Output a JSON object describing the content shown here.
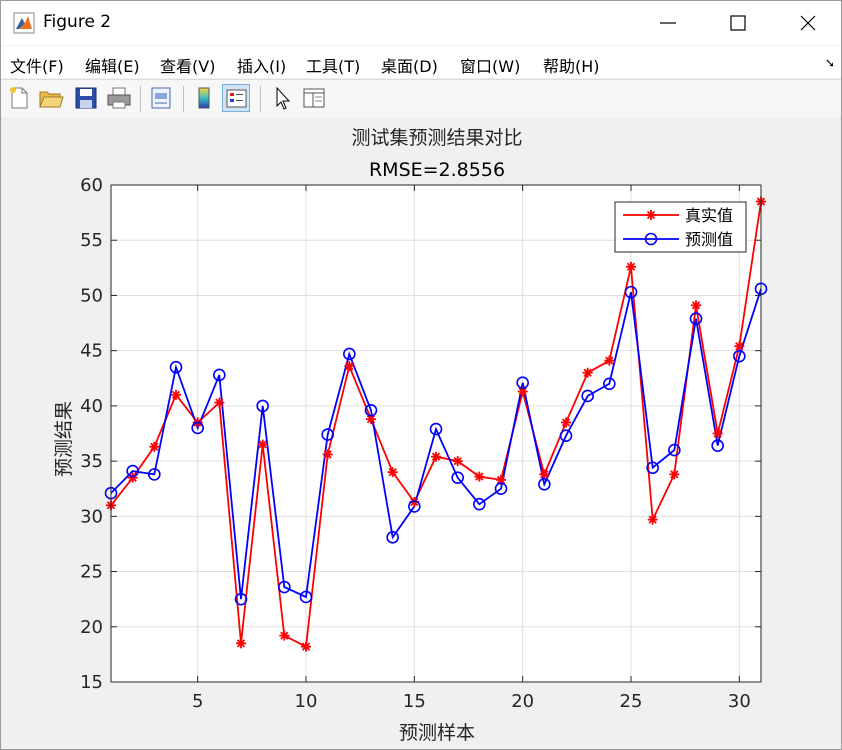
{
  "window": {
    "title": "Figure 2",
    "buttons": [
      "minimize",
      "maximize",
      "close"
    ]
  },
  "menu": {
    "items": [
      "文件(F)",
      "编辑(E)",
      "查看(V)",
      "插入(I)",
      "工具(T)",
      "桌面(D)",
      "窗口(W)",
      "帮助(H)"
    ]
  },
  "toolbar": {
    "icons": [
      "new-figure-icon",
      "open-icon",
      "save-icon",
      "print-icon",
      "print-preview-icon",
      "colorbar-icon",
      "legend-icon",
      "pointer-icon",
      "property-inspector-icon"
    ]
  },
  "chart_data": {
    "type": "line",
    "title": "测试集预测结果对比",
    "subtitle": "RMSE=2.8556",
    "xlabel": "预测样本",
    "ylabel": "预测结果",
    "xlim": [
      1,
      31
    ],
    "ylim": [
      15,
      60
    ],
    "xticks": [
      5,
      10,
      15,
      20,
      25,
      30
    ],
    "yticks": [
      15,
      20,
      25,
      30,
      35,
      40,
      45,
      50,
      55,
      60
    ],
    "grid": true,
    "legend_position": "top-right",
    "x": [
      1,
      2,
      3,
      4,
      5,
      6,
      7,
      8,
      9,
      10,
      11,
      12,
      13,
      14,
      15,
      16,
      17,
      18,
      19,
      20,
      21,
      22,
      23,
      24,
      25,
      26,
      27,
      28,
      29,
      30,
      31
    ],
    "series": [
      {
        "name": "真实值",
        "color": "#ff0000",
        "marker": "asterisk",
        "values": [
          31.0,
          33.5,
          36.3,
          41.0,
          38.5,
          40.3,
          18.5,
          36.5,
          19.2,
          18.2,
          35.6,
          43.6,
          38.8,
          34.0,
          31.3,
          35.4,
          35.0,
          33.6,
          33.3,
          41.3,
          33.8,
          38.5,
          43.0,
          44.1,
          52.6,
          29.7,
          33.8,
          49.1,
          37.5,
          45.4,
          58.5
        ]
      },
      {
        "name": "预测值",
        "color": "#0000ff",
        "marker": "circle",
        "values": [
          32.1,
          34.1,
          33.8,
          43.5,
          38.0,
          42.8,
          22.5,
          40.0,
          23.6,
          22.7,
          37.4,
          44.7,
          39.6,
          28.1,
          30.9,
          37.9,
          33.5,
          31.1,
          32.5,
          42.1,
          32.9,
          37.3,
          40.9,
          42.0,
          50.3,
          34.4,
          36.0,
          47.9,
          36.4,
          44.5,
          50.6
        ]
      }
    ]
  }
}
